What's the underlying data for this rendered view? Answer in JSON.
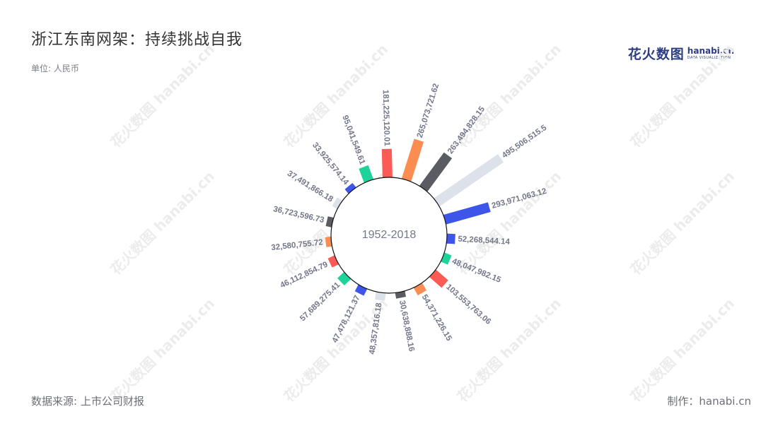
{
  "header": {
    "title": "浙江东南网架：持续挑战自我",
    "unit": "单位: 人民币"
  },
  "brand": {
    "name_cn": "花火数图",
    "name_en": "hanabi.cn",
    "tagline": "DATA VISUALIZATION",
    "colors": {
      "primary": "#2d3e82"
    }
  },
  "watermark": {
    "text": "花火数图 hanabi.cn"
  },
  "footer": {
    "source": "数据来源: 上市公司财报",
    "maker": "制作：hanabi.cn"
  },
  "chart_data": {
    "type": "radial-bar",
    "center_label": "1952-2018",
    "colors": [
      "#3d55e8",
      "#1dd39a",
      "#fb5a55",
      "#fb8c52",
      "#5a5b63",
      "#dde1ea"
    ],
    "values": [
      {
        "label": "48,357,816.18",
        "value": 48357816.18,
        "color": "#dde1ea"
      },
      {
        "label": "47,478,121.37",
        "value": 47478121.37,
        "color": "#3d55e8"
      },
      {
        "label": "57,689,275.41",
        "value": 57689275.41,
        "color": "#1dd39a"
      },
      {
        "label": "46,112,854.79",
        "value": 46112854.79,
        "color": "#fb5a55"
      },
      {
        "label": "32,580,755.72",
        "value": 32580755.72,
        "color": "#fb8c52"
      },
      {
        "label": "36,723,596.73",
        "value": 36723596.73,
        "color": "#5a5b63"
      },
      {
        "label": "37,491,866.18",
        "value": 37491866.18,
        "color": "#dde1ea"
      },
      {
        "label": "33,925,574.14",
        "value": 33925574.14,
        "color": "#3d55e8"
      },
      {
        "label": "95,041,549.61",
        "value": 95041549.61,
        "color": "#1dd39a"
      },
      {
        "label": "181,225,120.01",
        "value": 181225120.01,
        "color": "#fb5a55"
      },
      {
        "label": "265,073,721.62",
        "value": 265073721.62,
        "color": "#fb8c52"
      },
      {
        "label": "263,494,828.15",
        "value": 263494828.15,
        "color": "#5a5b63"
      },
      {
        "label": "495,506,515.5",
        "value": 495506515.5,
        "color": "#dde1ea"
      },
      {
        "label": "293,971,063.12",
        "value": 293971063.12,
        "color": "#3d55e8"
      },
      {
        "label": "52,268,544.14",
        "value": 52268544.14,
        "color": "#3d55e8"
      },
      {
        "label": "48,047,982.15",
        "value": 48047982.15,
        "color": "#1dd39a"
      },
      {
        "label": "103,553,763.06",
        "value": 103553763.06,
        "color": "#fb5a55"
      },
      {
        "label": "54,371,226.15",
        "value": 54371226.15,
        "color": "#fb8c52"
      },
      {
        "label": "30,638,888.16",
        "value": 30638888.16,
        "color": "#5a5b63"
      }
    ]
  }
}
